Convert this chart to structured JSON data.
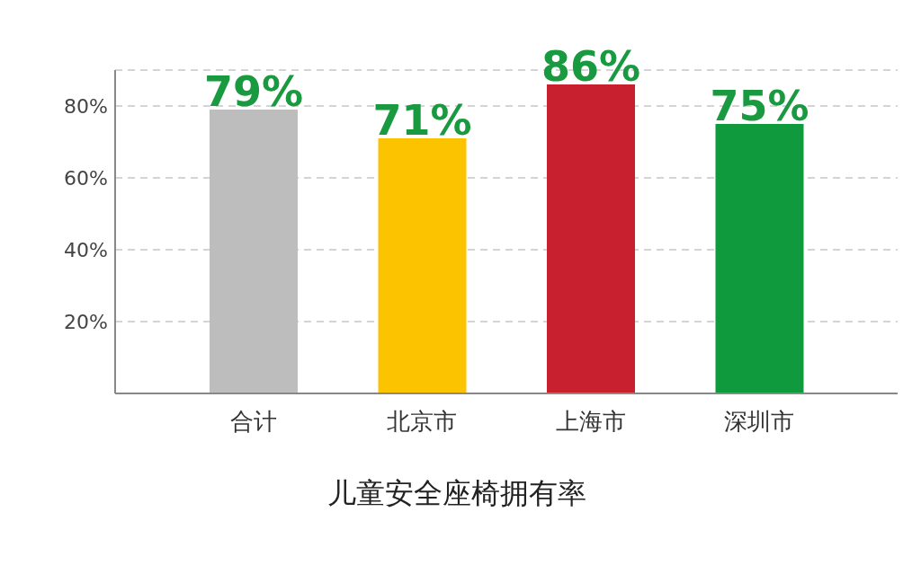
{
  "chart_data": {
    "type": "bar",
    "title": "儿童安全座椅拥有率",
    "categories": [
      "合计",
      "北京市",
      "上海市",
      "深圳市"
    ],
    "values": [
      79,
      71,
      86,
      75
    ],
    "colors": [
      "#bdbdbd",
      "#fcc300",
      "#c8202f",
      "#109a3e"
    ],
    "value_labels": [
      "79%",
      "71%",
      "86%",
      "75%"
    ],
    "ylim": [
      0,
      90
    ],
    "yticks": [
      {
        "value": 20,
        "label": "20%"
      },
      {
        "value": 40,
        "label": "40%"
      },
      {
        "value": 60,
        "label": "60%"
      },
      {
        "value": 80,
        "label": "80%"
      }
    ],
    "grid": "y"
  }
}
